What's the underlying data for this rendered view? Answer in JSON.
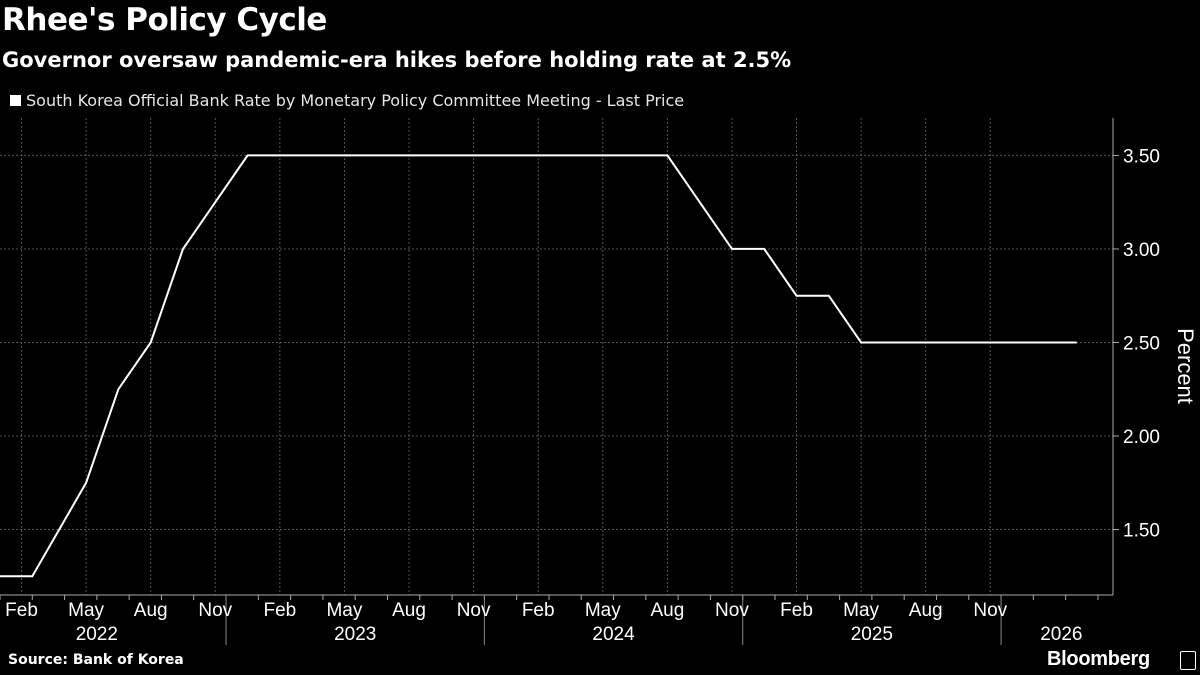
{
  "header": {
    "title": "Rhee's Policy Cycle",
    "subtitle": "Governor oversaw pandemic-era hikes before holding rate at 2.5%"
  },
  "footer": {
    "source": "Source: Bank of Korea",
    "brand": "Bloomberg"
  },
  "chart_data": {
    "type": "line",
    "title": "Rhee's Policy Cycle",
    "subtitle": "Governor oversaw pandemic-era hikes before holding rate at 2.5%",
    "legend": "South Korea Official Bank Rate by Monetary Policy Committee Meeting - Last Price",
    "legend_position": "top-left",
    "ylabel": "Percent",
    "xlabel": "",
    "ylim": [
      1.15,
      3.7
    ],
    "yticks": [
      1.5,
      2.0,
      2.5,
      3.0,
      3.5
    ],
    "ytick_labels": [
      "1.50",
      "2.00",
      "2.50",
      "3.00",
      "3.50"
    ],
    "grid": true,
    "line_color": "#ffffff",
    "x_months_range": [
      0.5,
      52.2
    ],
    "month_ticks": [
      {
        "m": 1.5,
        "label": "Feb"
      },
      {
        "m": 4.5,
        "label": "May"
      },
      {
        "m": 7.5,
        "label": "Aug"
      },
      {
        "m": 10.5,
        "label": "Nov"
      },
      {
        "m": 13.5,
        "label": "Feb"
      },
      {
        "m": 16.5,
        "label": "May"
      },
      {
        "m": 19.5,
        "label": "Aug"
      },
      {
        "m": 22.5,
        "label": "Nov"
      },
      {
        "m": 25.5,
        "label": "Feb"
      },
      {
        "m": 28.5,
        "label": "May"
      },
      {
        "m": 31.5,
        "label": "Aug"
      },
      {
        "m": 34.5,
        "label": "Nov"
      },
      {
        "m": 37.5,
        "label": "Feb"
      },
      {
        "m": 40.5,
        "label": "May"
      },
      {
        "m": 43.5,
        "label": "Aug"
      },
      {
        "m": 46.5,
        "label": "Nov"
      }
    ],
    "year_labels": [
      {
        "m": 5.0,
        "label": "2022"
      },
      {
        "m": 17.0,
        "label": "2023"
      },
      {
        "m": 29.0,
        "label": "2024"
      },
      {
        "m": 41.0,
        "label": "2025"
      },
      {
        "m": 49.8,
        "label": "2026"
      }
    ],
    "year_boundaries": [
      11.0,
      23.0,
      35.0,
      47.0
    ],
    "x_minor_ticks": [
      0.5,
      2.0,
      3.5,
      5.0,
      6.5,
      8.0,
      9.5,
      11.0,
      12.5,
      14.0,
      15.5,
      17.0,
      18.5,
      20.0,
      21.5,
      23.0,
      24.5,
      26.0,
      27.5,
      29.0,
      30.5,
      32.0,
      33.5,
      35.0,
      36.5,
      38.0,
      39.5,
      41.0,
      42.5,
      44.0,
      45.5,
      47.0,
      48.5,
      50.0,
      51.5
    ],
    "series": [
      {
        "name": "South Korea Official Bank Rate",
        "points": [
          {
            "m": 0.5,
            "v": 1.25
          },
          {
            "m": 2.0,
            "v": 1.25
          },
          {
            "m": 4.5,
            "v": 1.75
          },
          {
            "m": 6.0,
            "v": 2.25
          },
          {
            "m": 7.5,
            "v": 2.5
          },
          {
            "m": 9.0,
            "v": 3.0
          },
          {
            "m": 12.0,
            "v": 3.5
          },
          {
            "m": 31.5,
            "v": 3.5
          },
          {
            "m": 34.5,
            "v": 3.0
          },
          {
            "m": 36.0,
            "v": 3.0
          },
          {
            "m": 37.5,
            "v": 2.75
          },
          {
            "m": 39.0,
            "v": 2.75
          },
          {
            "m": 40.5,
            "v": 2.5
          },
          {
            "m": 50.5,
            "v": 2.5
          }
        ]
      }
    ]
  }
}
